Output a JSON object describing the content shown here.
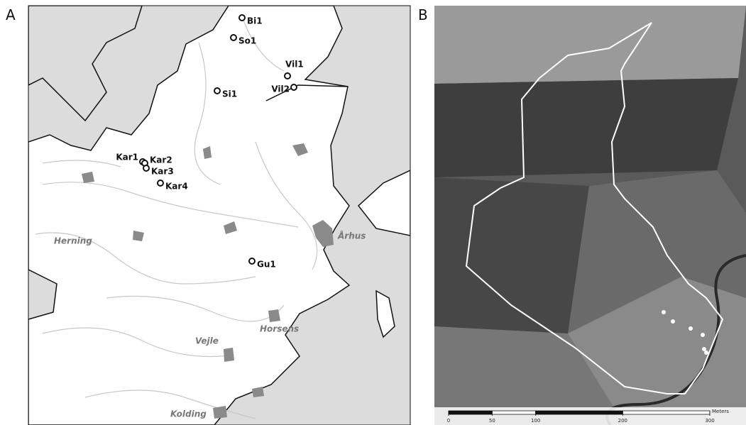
{
  "panels": [
    "A",
    "B"
  ],
  "map": {
    "sites": [
      "Bi1",
      "So1",
      "Vil1",
      "Vil2",
      "Si1",
      "Kar1",
      "Kar2",
      "Kar3",
      "Kar4",
      "Gu1"
    ],
    "cities": [
      "Herning",
      "Århus",
      "Horsens",
      "Vejle",
      "Kolding"
    ]
  },
  "scale": {
    "ticks": [
      0,
      50,
      100,
      200,
      300
    ],
    "unit": "Meters"
  }
}
